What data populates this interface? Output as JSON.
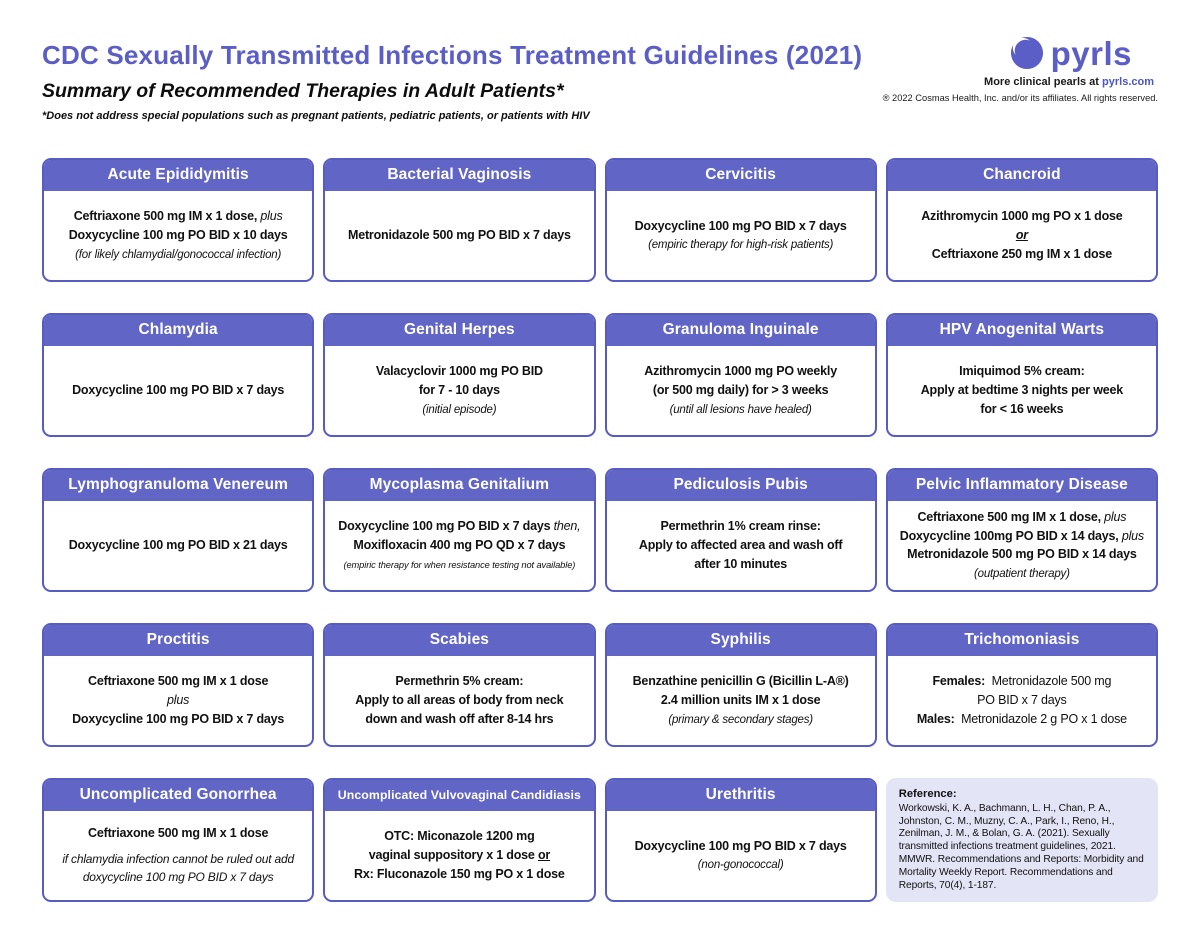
{
  "header": {
    "title": "CDC Sexually Transmitted Infections Treatment Guidelines (2021)",
    "subtitle": "Summary of Recommended Therapies in Adult Patients*",
    "footnote": "*Does not address special populations such as pregnant patients, pediatric patients, or patients with HIV",
    "logo_text": "pyrls",
    "tagline_prefix": "More clinical pearls at ",
    "tagline_link": "pyrls.com",
    "copyright": "® 2022 Cosmas Health, Inc. and/or its affiliates. All rights reserved."
  },
  "colors": {
    "accent": "#5A5EC6",
    "card_header_bg": "#6165C6",
    "card_border": "#575CC3",
    "reference_bg": "#E3E4F6",
    "link": "#4A55C8"
  },
  "cards": [
    {
      "title": "Acute Epididymitis",
      "lines": [
        [
          {
            "t": "Ceftriaxone 500 mg IM x 1 dose,",
            "s": "b"
          },
          {
            "t": " plus",
            "s": "i"
          }
        ],
        [
          {
            "t": "Doxycycline 100 mg PO BID x 10 days",
            "s": "b"
          }
        ],
        [
          {
            "t": "(for likely chlamydial/gonococcal infection)",
            "s": "n"
          }
        ]
      ]
    },
    {
      "title": "Bacterial Vaginosis",
      "lines": [
        [
          {
            "t": "Metronidazole 500 mg PO BID x 7 days",
            "s": "b"
          }
        ]
      ]
    },
    {
      "title": "Cervicitis",
      "lines": [
        [
          {
            "t": "Doxycycline 100 mg PO BID x 7 days",
            "s": "b"
          }
        ],
        [
          {
            "t": "(empiric therapy for high-risk patients)",
            "s": "n"
          }
        ]
      ]
    },
    {
      "title": "Chancroid",
      "lines": [
        [
          {
            "t": "Azithromycin 1000 mg PO x 1 dose",
            "s": "b"
          }
        ],
        [
          {
            "t": "or",
            "s": "biu"
          }
        ],
        [
          {
            "t": "Ceftriaxone 250 mg IM x 1 dose",
            "s": "b"
          }
        ]
      ]
    },
    {
      "title": "Chlamydia",
      "lines": [
        [
          {
            "t": "Doxycycline 100 mg PO BID x 7 days",
            "s": "b"
          }
        ]
      ]
    },
    {
      "title": "Genital Herpes",
      "lines": [
        [
          {
            "t": "Valacyclovir 1000 mg PO BID",
            "s": "b"
          }
        ],
        [
          {
            "t": "for 7 - 10 days",
            "s": "b"
          }
        ],
        [
          {
            "t": "(initial episode)",
            "s": "n"
          }
        ]
      ]
    },
    {
      "title": "Granuloma Inguinale",
      "lines": [
        [
          {
            "t": "Azithromycin 1000 mg PO weekly",
            "s": "b"
          }
        ],
        [
          {
            "t": "(or 500 mg daily) for > 3 weeks",
            "s": "b"
          }
        ],
        [
          {
            "t": "(until all lesions have healed)",
            "s": "n"
          }
        ]
      ]
    },
    {
      "title": "HPV Anogenital Warts",
      "lines": [
        [
          {
            "t": "Imiquimod 5% cream:",
            "s": "b"
          }
        ],
        [
          {
            "t": "Apply at bedtime 3 nights per week",
            "s": "b"
          }
        ],
        [
          {
            "t": "for < 16 weeks",
            "s": "b"
          }
        ]
      ]
    },
    {
      "title": "Lymphogranuloma Venereum",
      "lines": [
        [
          {
            "t": "Doxycycline 100 mg PO BID x 21 days",
            "s": "b"
          }
        ]
      ]
    },
    {
      "title": "Mycoplasma Genitalium",
      "lines": [
        [
          {
            "t": "Doxycycline 100 mg PO BID x 7 days",
            "s": "b"
          },
          {
            "t": " then,",
            "s": "i"
          }
        ],
        [
          {
            "t": "Moxifloxacin 400 mg PO QD x 7 days",
            "s": "b"
          }
        ],
        [
          {
            "t": "(empiric therapy for when resistance testing not available)",
            "s": "ns"
          }
        ]
      ]
    },
    {
      "title": "Pediculosis Pubis",
      "lines": [
        [
          {
            "t": "Permethrin 1% cream rinse:",
            "s": "b"
          }
        ],
        [
          {
            "t": "Apply to affected area and wash off",
            "s": "b"
          }
        ],
        [
          {
            "t": "after 10 minutes",
            "s": "b"
          }
        ]
      ]
    },
    {
      "title": "Pelvic Inflammatory Disease",
      "lines": [
        [
          {
            "t": "Ceftriaxone 500 mg IM x 1 dose,",
            "s": "b"
          },
          {
            "t": " plus",
            "s": "i"
          }
        ],
        [
          {
            "t": "Doxycycline 100mg PO BID x 14 days,",
            "s": "b"
          },
          {
            "t": " plus",
            "s": "i"
          }
        ],
        [
          {
            "t": "Metronidazole 500 mg PO BID x 14 days",
            "s": "b"
          }
        ],
        [
          {
            "t": "(outpatient therapy)",
            "s": "n"
          }
        ]
      ]
    },
    {
      "title": "Proctitis",
      "lines": [
        [
          {
            "t": "Ceftriaxone 500 mg IM x 1 dose",
            "s": "b"
          }
        ],
        [
          {
            "t": "plus",
            "s": "i"
          }
        ],
        [
          {
            "t": "Doxycycline 100 mg PO BID x 7 days",
            "s": "b"
          }
        ]
      ]
    },
    {
      "title": "Scabies",
      "lines": [
        [
          {
            "t": "Permethrin 5% cream:",
            "s": "b"
          }
        ],
        [
          {
            "t": "Apply to all areas of body from neck",
            "s": "b"
          }
        ],
        [
          {
            "t": "down and wash off after 8-14 hrs",
            "s": "b"
          }
        ]
      ]
    },
    {
      "title": "Syphilis",
      "lines": [
        [
          {
            "t": "Benzathine penicillin G (Bicillin L-A®)",
            "s": "b"
          }
        ],
        [
          {
            "t": "2.4 million units IM x 1 dose",
            "s": "b"
          }
        ],
        [
          {
            "t": "(primary & secondary stages)",
            "s": "n"
          }
        ]
      ]
    },
    {
      "title": "Trichomoniasis",
      "lines": [
        [
          {
            "t": "Females:",
            "s": "b"
          },
          {
            "t": "  Metronidazole 500 mg",
            "s": "r"
          }
        ],
        [
          {
            "t": "PO BID x 7 days",
            "s": "r"
          }
        ],
        [
          {
            "t": "Males:",
            "s": "b"
          },
          {
            "t": "  Metronidazole 2 g PO x 1 dose",
            "s": "r"
          }
        ]
      ]
    },
    {
      "title": "Uncomplicated Gonorrhea",
      "lines": [
        [
          {
            "t": "Ceftriaxone 500 mg IM x 1 dose",
            "s": "b"
          }
        ],
        [
          {
            "t": "if chlamydia infection cannot be ruled out add",
            "s": "in"
          }
        ],
        [
          {
            "t": "doxycycline 100 mg PO BID x 7 days",
            "s": "in"
          }
        ]
      ]
    },
    {
      "title": "Uncomplicated Vulvovaginal Candidiasis",
      "small_title": true,
      "lines": [
        [
          {
            "t": "OTC:",
            "s": "b"
          },
          {
            "t": " Miconazole 1200 mg",
            "s": "b"
          }
        ],
        [
          {
            "t": "vaginal suppository x 1 dose ",
            "s": "b"
          },
          {
            "t": "or",
            "s": "bu"
          }
        ],
        [
          {
            "t": "Rx:",
            "s": "b"
          },
          {
            "t": " Fluconazole 150 mg PO x 1 dose",
            "s": "b"
          }
        ]
      ]
    },
    {
      "title": "Urethritis",
      "lines": [
        [
          {
            "t": "Doxycycline 100 mg PO BID x 7 days",
            "s": "b"
          }
        ],
        [
          {
            "t": "(non-gonococcal)",
            "s": "n"
          }
        ]
      ]
    },
    {
      "type": "reference",
      "label": "Reference:",
      "text": "Workowski, K. A., Bachmann, L. H., Chan, P. A., Johnston, C. M., Muzny, C. A., Park, I., Reno, H., Zenilman, J. M., & Bolan, G. A. (2021).  Sexually transmitted infections treatment guidelines, 2021. MMWR.  Recommendations and Reports: Morbidity and Mortality Weekly Report.  Recommendations and Reports, 70(4), 1-187."
    }
  ]
}
